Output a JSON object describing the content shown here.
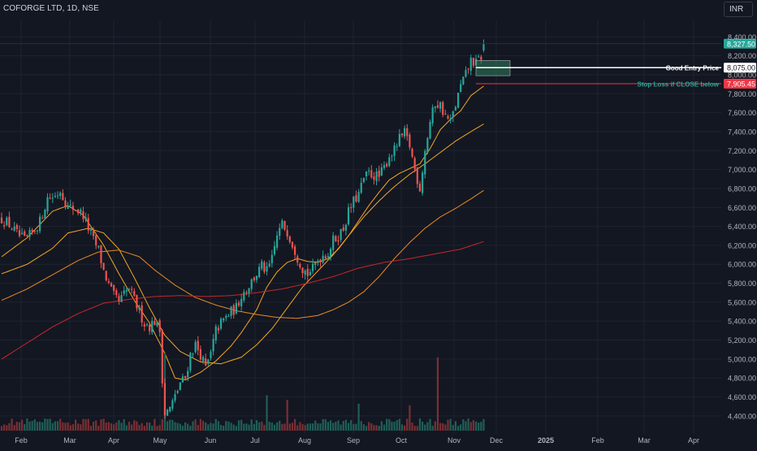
{
  "header": {
    "symbol_title": "COFORGE LTD, 1D, NSE",
    "currency": "INR"
  },
  "chart_data": {
    "type": "candlestick",
    "title": "COFORGE LTD, 1D, NSE",
    "currency": "INR",
    "y_axis": {
      "range": [
        4330,
        8480
      ],
      "ticks": [
        4400,
        4600,
        4800,
        5000,
        5200,
        5400,
        5600,
        5800,
        6000,
        6200,
        6400,
        6600,
        6800,
        7000,
        7200,
        7400,
        7600,
        7800,
        8000,
        8200,
        8400
      ],
      "tick_labels": [
        "4,400.00",
        "4,600.00",
        "4,800.00",
        "5,000.00",
        "5,200.00",
        "5,400.00",
        "5,600.00",
        "5,800.00",
        "6,000.00",
        "6,200.00",
        "6,400.00",
        "6,600.00",
        "6,800.00",
        "7,000.00",
        "7,200.00",
        "7,400.00",
        "7,600.00",
        "7,800.00",
        "8,000.00",
        "8,200.00",
        "8,400.00"
      ]
    },
    "x_axis": {
      "labels": [
        "Feb",
        "Mar",
        "Apr",
        "May",
        "Jun",
        "Jul",
        "Aug",
        "Sep",
        "Oct",
        "Nov",
        "Dec",
        "2025",
        "Feb",
        "Mar",
        "Apr"
      ]
    },
    "price_path": [
      [
        0,
        6480
      ],
      [
        3,
        6420
      ],
      [
        6,
        6320
      ],
      [
        9,
        6250
      ],
      [
        12,
        6330
      ],
      [
        15,
        6450
      ],
      [
        18,
        6700
      ],
      [
        21,
        6720
      ],
      [
        23,
        6780
      ],
      [
        26,
        6600
      ],
      [
        29,
        6590
      ],
      [
        32,
        6520
      ],
      [
        34,
        6380
      ],
      [
        36,
        6250
      ],
      [
        38,
        6150
      ],
      [
        40,
        5930
      ],
      [
        42,
        5780
      ],
      [
        44,
        5660
      ],
      [
        46,
        5600
      ],
      [
        48,
        5680
      ],
      [
        50,
        5740
      ],
      [
        52,
        5620
      ],
      [
        54,
        5500
      ],
      [
        56,
        5380
      ],
      [
        58,
        5350
      ],
      [
        60,
        5400
      ],
      [
        62,
        5300
      ],
      [
        63,
        4800
      ],
      [
        64,
        4420
      ],
      [
        66,
        4480
      ],
      [
        68,
        4600
      ],
      [
        70,
        4750
      ],
      [
        72,
        4800
      ],
      [
        74,
        5050
      ],
      [
        76,
        5150
      ],
      [
        78,
        5050
      ],
      [
        80,
        4900
      ],
      [
        82,
        5050
      ],
      [
        84,
        5300
      ],
      [
        86,
        5380
      ],
      [
        88,
        5440
      ],
      [
        90,
        5500
      ],
      [
        92,
        5540
      ],
      [
        94,
        5680
      ],
      [
        96,
        5740
      ],
      [
        98,
        5820
      ],
      [
        100,
        5900
      ],
      [
        102,
        5980
      ],
      [
        104,
        5920
      ],
      [
        106,
        6050
      ],
      [
        108,
        6300
      ],
      [
        110,
        6420
      ],
      [
        112,
        6350
      ],
      [
        114,
        6220
      ],
      [
        116,
        6080
      ],
      [
        118,
        5960
      ],
      [
        120,
        5900
      ],
      [
        122,
        5950
      ],
      [
        124,
        6050
      ],
      [
        126,
        6100
      ],
      [
        128,
        6120
      ],
      [
        130,
        6250
      ],
      [
        132,
        6300
      ],
      [
        134,
        6380
      ],
      [
        136,
        6550
      ],
      [
        138,
        6660
      ],
      [
        140,
        6740
      ],
      [
        142,
        6900
      ],
      [
        144,
        6960
      ],
      [
        146,
        6940
      ],
      [
        148,
        6920
      ],
      [
        150,
        7020
      ],
      [
        152,
        7150
      ],
      [
        154,
        7200
      ],
      [
        156,
        7320
      ],
      [
        158,
        7380
      ],
      [
        160,
        7250
      ],
      [
        162,
        7000
      ],
      [
        164,
        6800
      ],
      [
        166,
        7200
      ],
      [
        168,
        7500
      ],
      [
        170,
        7700
      ],
      [
        172,
        7680
      ],
      [
        174,
        7560
      ],
      [
        176,
        7500
      ],
      [
        178,
        7680
      ],
      [
        180,
        7880
      ],
      [
        182,
        8000
      ],
      [
        184,
        8150
      ],
      [
        186,
        8120
      ],
      [
        188,
        8190
      ],
      [
        189,
        8327.5
      ]
    ],
    "series": [
      {
        "name": "",
        "color": "#f5a623",
        "values": [
          [
            0,
            6080
          ],
          [
            10,
            6280
          ],
          [
            20,
            6560
          ],
          [
            26,
            6620
          ],
          [
            32,
            6520
          ],
          [
            40,
            6200
          ],
          [
            46,
            5900
          ],
          [
            52,
            5620
          ],
          [
            58,
            5380
          ],
          [
            64,
            5060
          ],
          [
            68,
            4800
          ],
          [
            72,
            4780
          ],
          [
            78,
            4860
          ],
          [
            84,
            4980
          ],
          [
            90,
            5140
          ],
          [
            94,
            5280
          ],
          [
            100,
            5520
          ],
          [
            104,
            5760
          ],
          [
            108,
            5920
          ],
          [
            112,
            6020
          ],
          [
            116,
            6060
          ],
          [
            120,
            6030
          ],
          [
            124,
            6020
          ],
          [
            128,
            6060
          ],
          [
            132,
            6160
          ],
          [
            136,
            6300
          ],
          [
            140,
            6460
          ],
          [
            144,
            6620
          ],
          [
            148,
            6760
          ],
          [
            152,
            6890
          ],
          [
            156,
            6960
          ],
          [
            160,
            7010
          ],
          [
            164,
            7060
          ],
          [
            168,
            7220
          ],
          [
            172,
            7420
          ],
          [
            176,
            7530
          ],
          [
            180,
            7620
          ],
          [
            184,
            7780
          ],
          [
            189,
            7880
          ]
        ]
      },
      {
        "name": "",
        "color": "#f5a623",
        "values": [
          [
            0,
            5900
          ],
          [
            10,
            6000
          ],
          [
            20,
            6170
          ],
          [
            26,
            6330
          ],
          [
            34,
            6380
          ],
          [
            40,
            6330
          ],
          [
            46,
            6160
          ],
          [
            52,
            5860
          ],
          [
            58,
            5540
          ],
          [
            64,
            5250
          ],
          [
            70,
            5080
          ],
          [
            78,
            4970
          ],
          [
            86,
            4950
          ],
          [
            94,
            5020
          ],
          [
            100,
            5150
          ],
          [
            106,
            5320
          ],
          [
            112,
            5540
          ],
          [
            118,
            5760
          ],
          [
            124,
            5930
          ],
          [
            130,
            6100
          ],
          [
            136,
            6300
          ],
          [
            142,
            6500
          ],
          [
            148,
            6670
          ],
          [
            154,
            6820
          ],
          [
            160,
            6950
          ],
          [
            166,
            7060
          ],
          [
            172,
            7180
          ],
          [
            178,
            7300
          ],
          [
            184,
            7400
          ],
          [
            189,
            7480
          ]
        ]
      },
      {
        "name": "",
        "color": "#e98a24",
        "values": [
          [
            0,
            5620
          ],
          [
            10,
            5740
          ],
          [
            20,
            5890
          ],
          [
            30,
            6040
          ],
          [
            38,
            6130
          ],
          [
            46,
            6150
          ],
          [
            54,
            6080
          ],
          [
            60,
            5940
          ],
          [
            68,
            5780
          ],
          [
            76,
            5650
          ],
          [
            84,
            5570
          ],
          [
            92,
            5510
          ],
          [
            100,
            5470
          ],
          [
            108,
            5440
          ],
          [
            116,
            5430
          ],
          [
            124,
            5460
          ],
          [
            130,
            5520
          ],
          [
            136,
            5600
          ],
          [
            142,
            5710
          ],
          [
            148,
            5870
          ],
          [
            154,
            6060
          ],
          [
            160,
            6230
          ],
          [
            166,
            6380
          ],
          [
            172,
            6500
          ],
          [
            178,
            6590
          ],
          [
            184,
            6690
          ],
          [
            189,
            6780
          ]
        ]
      },
      {
        "name": "",
        "color": "#c62828",
        "values": [
          [
            0,
            5000
          ],
          [
            10,
            5170
          ],
          [
            20,
            5340
          ],
          [
            30,
            5480
          ],
          [
            40,
            5590
          ],
          [
            50,
            5630
          ],
          [
            60,
            5660
          ],
          [
            70,
            5670
          ],
          [
            80,
            5660
          ],
          [
            90,
            5670
          ],
          [
            100,
            5700
          ],
          [
            110,
            5740
          ],
          [
            120,
            5800
          ],
          [
            130,
            5870
          ],
          [
            140,
            5960
          ],
          [
            150,
            6020
          ],
          [
            160,
            6060
          ],
          [
            170,
            6110
          ],
          [
            180,
            6160
          ],
          [
            189,
            6240
          ]
        ]
      }
    ],
    "volume_spikes": [
      {
        "x": 64,
        "relative": 1.0
      },
      {
        "x": 171,
        "relative": 0.95
      },
      {
        "x": 104,
        "relative": 0.46
      },
      {
        "x": 112,
        "relative": 0.4
      },
      {
        "x": 140,
        "relative": 0.35
      },
      {
        "x": 160,
        "relative": 0.33
      }
    ],
    "levels": [
      {
        "name": "current",
        "value": 8327.5,
        "label": "8,327.50",
        "color": "#26a69a"
      },
      {
        "name": "entry",
        "value": 8075.0,
        "label": "8,075.00",
        "annotation": "Good Entry Price",
        "color": "#ffffff"
      },
      {
        "name": "stop",
        "value": 7905.45,
        "label": "7,905.45",
        "annotation": "Stop Loss if CLOSE below",
        "color": "#f23645",
        "annotation_color": "#26a69a"
      }
    ],
    "zone": {
      "top": 8150,
      "bottom": 7990,
      "color": "#2e7d5b"
    },
    "grid": true
  }
}
